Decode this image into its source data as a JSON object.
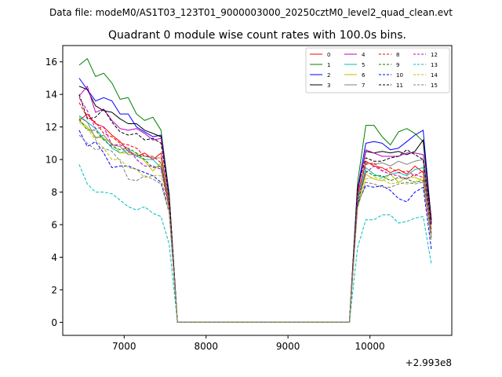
{
  "chart_data": {
    "type": "line",
    "suptitle": "Data file: modeM0/AS1T03_123T01_9000003000_20250cztM0_level2_quad_clean.evt",
    "title": "Quadrant 0 module wise count rates with 100.0s bins.",
    "xlabel": "",
    "ylabel": "",
    "x_offset_label": "+2.993e8",
    "xlim": [
      6250,
      11000
    ],
    "ylim": [
      -0.8,
      17.0
    ],
    "xticks": [
      7000,
      8000,
      9000,
      10000
    ],
    "xtick_labels": [
      "7000",
      "8000",
      "9000",
      "10000"
    ],
    "yticks": [
      0,
      2,
      4,
      6,
      8,
      10,
      12,
      14,
      16
    ],
    "ytick_labels": [
      "0",
      "2",
      "4",
      "6",
      "8",
      "10",
      "12",
      "14",
      "16"
    ],
    "grid": false,
    "legend": "upper-right, 4 columns",
    "x": [
      6450,
      6550,
      6650,
      6750,
      6850,
      6950,
      7050,
      7150,
      7250,
      7350,
      7450,
      7550,
      7650,
      7750,
      9750,
      9850,
      9950,
      10050,
      10150,
      10250,
      10350,
      10450,
      10550,
      10650,
      10750
    ],
    "series": [
      {
        "name": "0",
        "color": "#ff0000",
        "dash": "solid",
        "values": [
          12.4,
          12.8,
          12.2,
          12.0,
          11.5,
          11.1,
          10.5,
          10.2,
          10.4,
          10.0,
          10.4,
          7.4,
          0.0,
          0.0,
          0.0,
          7.8,
          9.9,
          9.6,
          9.5,
          9.2,
          9.4,
          9.1,
          9.6,
          9.2,
          6.0
        ]
      },
      {
        "name": "1",
        "color": "#008000",
        "dash": "solid",
        "values": [
          15.8,
          16.2,
          15.1,
          15.3,
          14.7,
          13.7,
          13.8,
          12.8,
          12.4,
          12.6,
          11.8,
          7.9,
          0.0,
          0.0,
          0.0,
          8.6,
          12.1,
          12.1,
          11.4,
          10.9,
          11.7,
          11.9,
          11.6,
          11.1,
          6.3
        ]
      },
      {
        "name": "2",
        "color": "#0000ff",
        "dash": "solid",
        "values": [
          15.0,
          14.3,
          13.6,
          13.8,
          13.6,
          12.8,
          12.8,
          12.0,
          11.7,
          11.4,
          11.5,
          7.8,
          0.0,
          0.0,
          0.0,
          8.2,
          11.0,
          11.1,
          11.0,
          10.6,
          10.7,
          11.1,
          11.5,
          11.8,
          6.2
        ]
      },
      {
        "name": "3",
        "color": "#000000",
        "dash": "solid",
        "values": [
          14.5,
          14.3,
          13.3,
          13.0,
          12.9,
          12.5,
          12.2,
          12.2,
          11.8,
          11.6,
          11.4,
          7.7,
          0.0,
          0.0,
          0.0,
          8.1,
          10.5,
          10.4,
          10.5,
          10.4,
          10.5,
          10.3,
          10.5,
          11.2,
          6.3
        ]
      },
      {
        "name": "4",
        "color": "#bf00bf",
        "dash": "solid",
        "values": [
          13.9,
          14.5,
          12.9,
          13.1,
          12.4,
          11.9,
          11.8,
          11.9,
          11.6,
          11.2,
          11.3,
          7.6,
          0.0,
          0.0,
          0.0,
          8.0,
          10.6,
          10.4,
          10.2,
          10.2,
          10.2,
          10.4,
          10.4,
          10.3,
          6.1
        ]
      },
      {
        "name": "5",
        "color": "#00bfbf",
        "dash": "solid",
        "values": [
          12.7,
          12.3,
          11.9,
          11.3,
          10.7,
          10.4,
          10.6,
          10.2,
          10.0,
          10.0,
          9.5,
          7.3,
          0.0,
          0.0,
          0.0,
          7.5,
          9.5,
          9.1,
          8.9,
          9.1,
          9.2,
          9.0,
          9.4,
          9.5,
          5.4
        ]
      },
      {
        "name": "6",
        "color": "#bfbf00",
        "dash": "solid",
        "values": [
          12.4,
          12.0,
          11.4,
          11.3,
          11.0,
          10.4,
          10.4,
          10.4,
          9.9,
          9.3,
          9.8,
          7.2,
          0.0,
          0.0,
          0.0,
          7.2,
          9.1,
          8.8,
          8.7,
          9.1,
          8.6,
          8.9,
          8.9,
          8.7,
          5.2
        ]
      },
      {
        "name": "7",
        "color": "#808080",
        "dash": "solid",
        "values": [
          12.6,
          12.3,
          11.3,
          11.5,
          10.9,
          10.8,
          10.3,
          10.3,
          10.2,
          10.1,
          10.1,
          7.5,
          0.0,
          0.0,
          0.0,
          7.7,
          9.8,
          9.7,
          9.8,
          9.6,
          9.9,
          9.7,
          9.9,
          10.0,
          5.7
        ]
      },
      {
        "name": "8",
        "color": "#ff0000",
        "dash": "dashed",
        "values": [
          13.5,
          12.6,
          12.3,
          11.6,
          11.4,
          11.0,
          10.9,
          10.7,
          10.2,
          10.2,
          9.8,
          7.3,
          0.0,
          0.0,
          0.0,
          7.9,
          9.7,
          9.8,
          9.3,
          9.5,
          9.2,
          9.3,
          9.0,
          9.3,
          5.5
        ]
      },
      {
        "name": "9",
        "color": "#008000",
        "dash": "dashed",
        "values": [
          12.5,
          11.8,
          11.8,
          11.2,
          10.8,
          10.6,
          10.7,
          10.4,
          10.0,
          9.5,
          9.6,
          7.1,
          0.0,
          0.0,
          0.0,
          7.3,
          9.3,
          9.0,
          9.0,
          8.7,
          8.9,
          8.8,
          8.6,
          8.7,
          5.2
        ]
      },
      {
        "name": "10",
        "color": "#0000ff",
        "dash": "dashed",
        "values": [
          11.8,
          10.8,
          11.1,
          10.4,
          9.5,
          9.6,
          9.6,
          9.4,
          9.2,
          9.0,
          8.6,
          6.8,
          0.0,
          0.0,
          0.0,
          7.3,
          8.4,
          8.3,
          8.4,
          8.1,
          7.6,
          7.4,
          8.0,
          8.3,
          4.5
        ]
      },
      {
        "name": "11",
        "color": "#000000",
        "dash": "dashed",
        "values": [
          14.0,
          12.5,
          12.6,
          13.1,
          12.3,
          11.7,
          11.5,
          11.6,
          11.2,
          11.3,
          11.0,
          7.7,
          0.0,
          0.0,
          0.0,
          8.3,
          10.1,
          9.9,
          9.9,
          10.1,
          10.2,
          10.6,
          10.3,
          10.0,
          6.0
        ]
      },
      {
        "name": "12",
        "color": "#bf00bf",
        "dash": "dashed",
        "values": [
          13.8,
          13.0,
          11.9,
          12.0,
          10.9,
          10.9,
          10.7,
          10.0,
          9.6,
          9.6,
          9.4,
          7.0,
          0.0,
          0.0,
          0.0,
          7.6,
          9.2,
          9.6,
          9.3,
          9.1,
          9.0,
          8.8,
          9.1,
          8.9,
          5.1
        ]
      },
      {
        "name": "13",
        "color": "#00bfbf",
        "dash": "dashed",
        "values": [
          9.7,
          8.5,
          8.0,
          8.0,
          7.9,
          7.5,
          7.1,
          6.9,
          7.1,
          6.7,
          6.5,
          4.8,
          0.0,
          0.0,
          0.0,
          4.6,
          6.3,
          6.3,
          6.6,
          6.6,
          6.1,
          6.2,
          6.4,
          6.5,
          3.6
        ]
      },
      {
        "name": "14",
        "color": "#bfbf00",
        "dash": "dashed",
        "values": [
          12.3,
          11.9,
          11.2,
          10.7,
          10.0,
          10.0,
          9.5,
          9.4,
          8.9,
          9.0,
          9.0,
          6.8,
          0.0,
          0.0,
          0.0,
          7.0,
          8.8,
          8.9,
          8.8,
          8.5,
          8.6,
          8.5,
          8.6,
          8.9,
          5.1
        ]
      },
      {
        "name": "15",
        "color": "#808080",
        "dash": "dashed",
        "values": [
          11.5,
          11.0,
          10.6,
          10.7,
          10.5,
          9.9,
          8.8,
          8.7,
          9.0,
          8.8,
          8.5,
          6.7,
          0.0,
          0.0,
          0.0,
          7.1,
          8.6,
          8.5,
          8.3,
          8.3,
          8.5,
          8.6,
          8.5,
          8.6,
          5.1
        ]
      }
    ]
  }
}
